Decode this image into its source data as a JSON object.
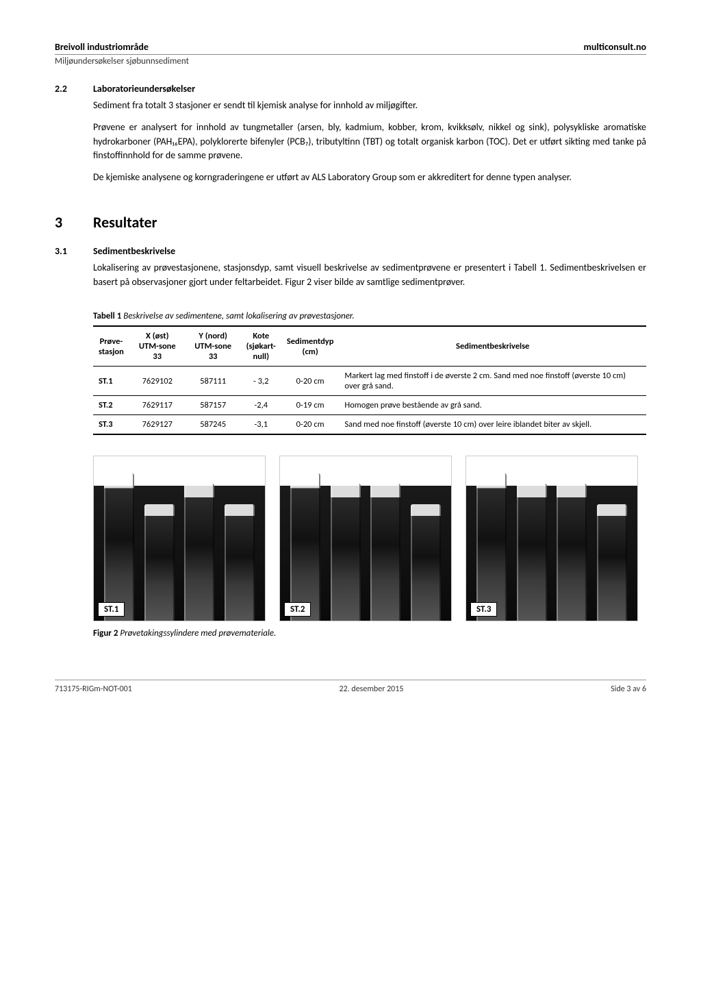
{
  "header": {
    "left": "Breivoll industriområde",
    "right": "multiconsult.no",
    "sub": "Miljøundersøkelser sjøbunnsediment"
  },
  "sec22": {
    "num": "2.2",
    "title": "Laboratorieundersøkelser",
    "p1": "Sediment fra totalt 3 stasjoner er sendt til kjemisk analyse for innhold av miljøgifter.",
    "p2": "Prøvene er analysert for innhold av tungmetaller (arsen, bly, kadmium, kobber, krom, kvikksølv, nikkel og sink), polysykliske aromatiske hydrokarboner (PAH₁₆EPA), polyklorerte bifenyler (PCB₇), tributyltinn (TBT) og totalt organisk karbon (TOC). Det er utført sikting med tanke på finstoffinnhold for de samme prøvene.",
    "p3": "De kjemiske analysene og korngraderingene er utført av ALS Laboratory Group som er akkreditert for denne typen analyser."
  },
  "sec3": {
    "num": "3",
    "title": "Resultater"
  },
  "sec31": {
    "num": "3.1",
    "title": "Sedimentbeskrivelse",
    "p1": "Lokalisering av prøvestasjonene, stasjonsdyp, samt visuell beskrivelse av sedimentprøvene er presentert i Tabell 1. Sedimentbeskrivelsen er basert på observasjoner gjort under feltarbeidet. Figur 2 viser bilde av samtlige sedimentprøver."
  },
  "table1": {
    "caption_bold": "Tabell 1",
    "caption_rest": " Beskrivelse av sedimentene, samt lokalisering av prøvestasjoner.",
    "columns": [
      "Prøve-\nstasjon",
      "X (øst)\nUTM-sone 33",
      "Y (nord)\nUTM-sone 33",
      "Kote\n(sjøkart-\nnull)",
      "Sedimentdyp\n(cm)",
      "Sedimentbeskrivelse"
    ],
    "rows": [
      {
        "station": "ST.1",
        "x": "7629102",
        "y": "587111",
        "kote": "- 3,2",
        "dyp": "0-20 cm",
        "desc": "Markert lag med finstoff i de øverste 2 cm. Sand med noe finstoff (øverste 10 cm) over grå sand."
      },
      {
        "station": "ST.2",
        "x": "7629117",
        "y": "587157",
        "kote": "-2,4",
        "dyp": "0-19 cm",
        "desc": "Homogen prøve bestående av grå sand."
      },
      {
        "station": "ST.3",
        "x": "7629127",
        "y": "587245",
        "kote": "-3,1",
        "dyp": "0-20 cm",
        "desc": "Sand med noe finstoff (øverste 10 cm) over leire iblandet biter av skjell."
      }
    ]
  },
  "figure2": {
    "labels": [
      "ST.1",
      "ST.2",
      "ST.3"
    ],
    "caption_bold": "Figur 2",
    "caption_rest": " Prøvetakingssylindere med prøvemateriale."
  },
  "footer": {
    "left": "713175-RIGm-NOT-001",
    "center": "22. desember 2015",
    "right": "Side 3 av 6"
  }
}
